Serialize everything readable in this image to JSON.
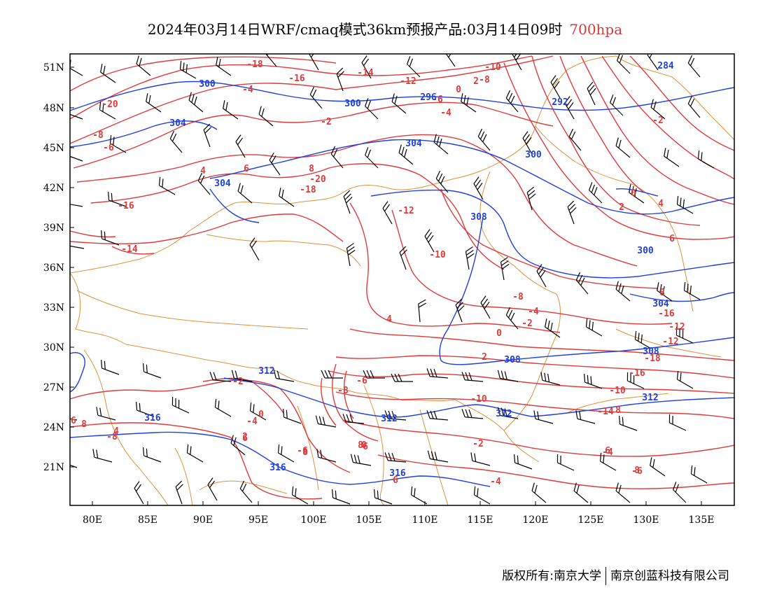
{
  "title": {
    "main": "2024年03月14日WRF/cmaq模式36km预报产品:03月14日09时",
    "level": "700hpa"
  },
  "colors": {
    "temperature": "#e03b3b",
    "height": "#2040e0",
    "borders": "#e0903a",
    "wind": "#000000",
    "level_title": "#d63a3a"
  },
  "map": {
    "lon_range": [
      78,
      138
    ],
    "lat_range": [
      18,
      52
    ],
    "lat_labels": [
      "51N",
      "48N",
      "45N",
      "42N",
      "39N",
      "36N",
      "33N",
      "30N",
      "27N",
      "24N",
      "21N"
    ],
    "lon_labels": [
      "80E",
      "85E",
      "90E",
      "95E",
      "100E",
      "105E",
      "110E",
      "115E",
      "120E",
      "125E",
      "130E",
      "135E"
    ],
    "temperature_labels": [
      "-20",
      "-18",
      "-16",
      "-14",
      "-12",
      "-10",
      "-8",
      "-6",
      "-4",
      "-2",
      "0",
      "2",
      "4",
      "6",
      "8",
      "-20",
      "-18",
      "-16",
      "-14",
      "-12",
      "-10",
      "-8",
      "-6",
      "-4",
      "-2",
      "0",
      "2",
      "4",
      "6",
      "8",
      "-16",
      "-12",
      "-12",
      "-18",
      "-16",
      "-10",
      "-14",
      "-4",
      "-6",
      "-8",
      "-4",
      "-2",
      "0",
      "2",
      "4",
      "-6",
      "-8",
      "-10",
      "-2",
      "-4",
      "0",
      "-6",
      "2",
      "-2",
      "0",
      "4",
      "6",
      "8",
      "6",
      "8",
      "6",
      "-8",
      "8",
      "6",
      "-4",
      "8",
      "8",
      "6"
    ],
    "height_labels": [
      "300",
      "304",
      "300",
      "296",
      "292",
      "304",
      "300",
      "304",
      "308",
      "300",
      "304",
      "308",
      "312",
      "316",
      "312",
      "312",
      "316",
      "316",
      "308",
      "312",
      "284"
    ]
  },
  "footer": {
    "copyright": "版权所有:南京大学",
    "company": "南京创蓝科技有限公司"
  }
}
